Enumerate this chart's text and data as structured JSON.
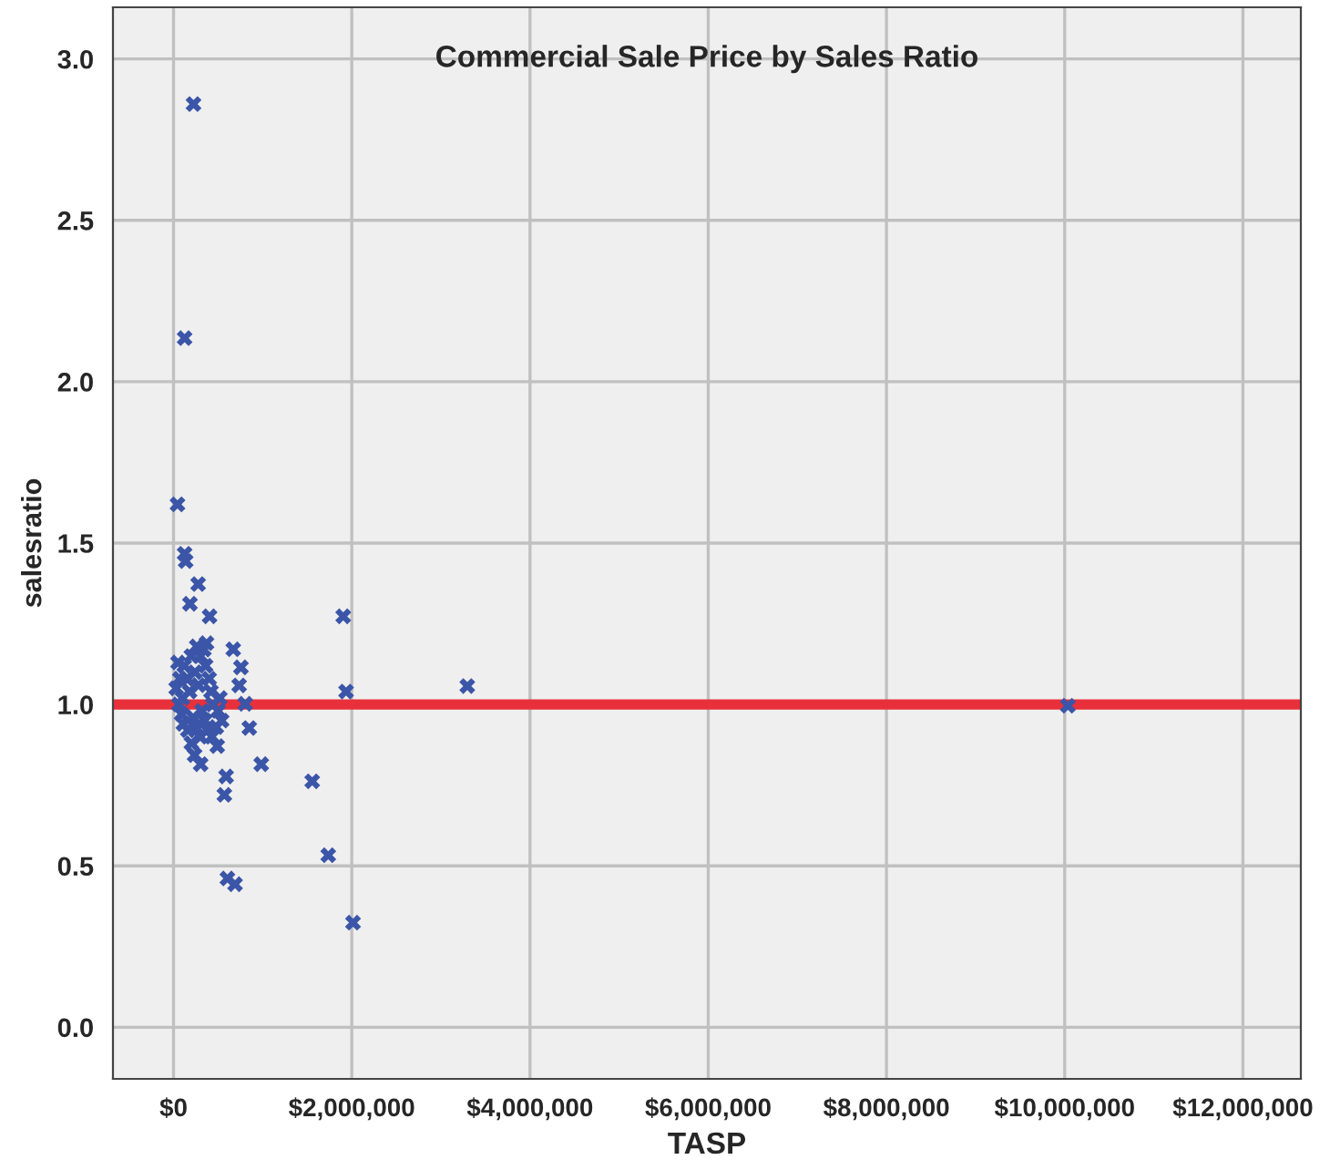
{
  "chart_data": {
    "type": "scatter",
    "title": "Commercial Sale Price by Sales Ratio",
    "xlabel": "TASP",
    "ylabel": "salesratio",
    "xlim": [
      -680000,
      12650000
    ],
    "ylim": [
      -0.16,
      3.16
    ],
    "xticks": [
      {
        "value": 0,
        "label": "$0"
      },
      {
        "value": 2000000,
        "label": "$2,000,000"
      },
      {
        "value": 4000000,
        "label": "$4,000,000"
      },
      {
        "value": 6000000,
        "label": "$6,000,000"
      },
      {
        "value": 8000000,
        "label": "$8,000,000"
      },
      {
        "value": 10000000,
        "label": "$10,000,000"
      },
      {
        "value": 12000000,
        "label": "$12,000,000"
      }
    ],
    "yticks": [
      {
        "value": 0,
        "label": "0.0"
      },
      {
        "value": 0.5,
        "label": "0.5"
      },
      {
        "value": 1,
        "label": "1.0"
      },
      {
        "value": 1.5,
        "label": "1.5"
      },
      {
        "value": 2,
        "label": "2.0"
      },
      {
        "value": 2.5,
        "label": "2.5"
      },
      {
        "value": 3,
        "label": "3.0"
      }
    ],
    "grid": true,
    "marker": "cross",
    "ref_lines": [
      {
        "axis": "y",
        "value": 1.0,
        "color": "#e8303a"
      }
    ],
    "series": [
      {
        "color": "#3b55a8",
        "x": [
          224000,
          124000,
          44000,
          124000,
          136000,
          276000,
          184000,
          404000,
          1904000,
          1936000,
          670000,
          756000,
          736000,
          804000,
          850000,
          984000,
          1556000,
          1736000,
          604000,
          690000,
          236000,
          304000,
          490000,
          590000,
          570000,
          370000,
          3296000,
          10036000,
          2014000,
          50000,
          30000,
          60000,
          90000,
          120000,
          150000,
          180000,
          220000,
          250000,
          100000,
          160000,
          200000,
          240000,
          280000,
          320000,
          350000,
          380000,
          260000,
          300000,
          340000,
          360000,
          400000,
          420000,
          440000,
          480000,
          500000,
          520000,
          540000,
          300000,
          70000,
          110000,
          430000,
          200000
        ],
        "values": [
          2.86,
          2.135,
          1.62,
          1.467,
          1.444,
          1.373,
          1.312,
          1.273,
          1.273,
          1.04,
          1.171,
          1.115,
          1.059,
          1.002,
          0.927,
          0.815,
          0.762,
          0.533,
          0.461,
          0.443,
          0.843,
          0.815,
          0.871,
          0.777,
          0.72,
          1.19,
          1.057,
          0.996,
          0.324,
          1.13,
          1.05,
          1.0,
          0.97,
          1.12,
          1.08,
          1.04,
          0.96,
          0.93,
          1.02,
          0.92,
          1.15,
          1.1,
          1.06,
          0.98,
          0.95,
          0.92,
          1.18,
          1.15,
          1.17,
          1.12,
          1.08,
          1.04,
          1.0,
          0.93,
          0.98,
          1.02,
          0.95,
          0.9,
          1.08,
          0.94,
          0.9,
          0.88
        ]
      }
    ]
  }
}
